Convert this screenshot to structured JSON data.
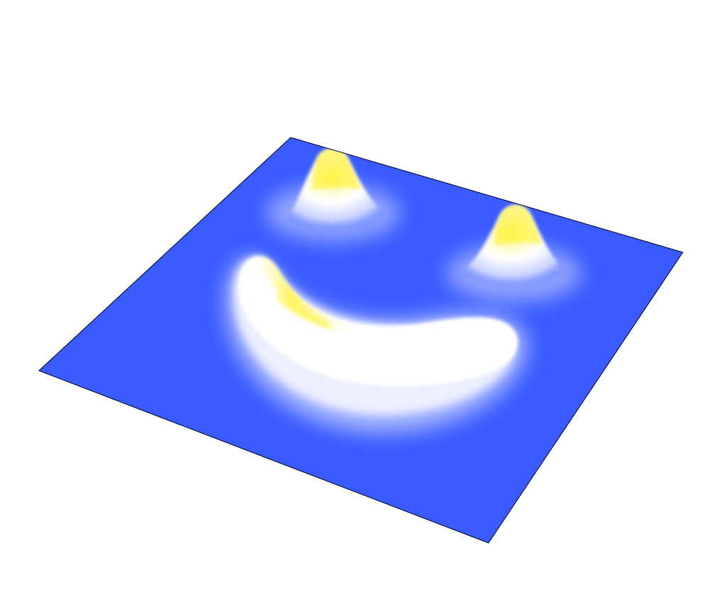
{
  "scene": {
    "description_type": "3d-surface-render",
    "colors": {
      "background": "#ffffff",
      "surface_base": "#3a5cff",
      "surface_mid": "#ffffff",
      "surface_peak": "#fff23a",
      "edge": "#0a0f3a"
    },
    "features": [
      {
        "name": "left-eye-peak",
        "kind": "peak"
      },
      {
        "name": "right-eye-peak",
        "kind": "peak"
      },
      {
        "name": "mouth-ridge",
        "kind": "ridge"
      }
    ]
  }
}
